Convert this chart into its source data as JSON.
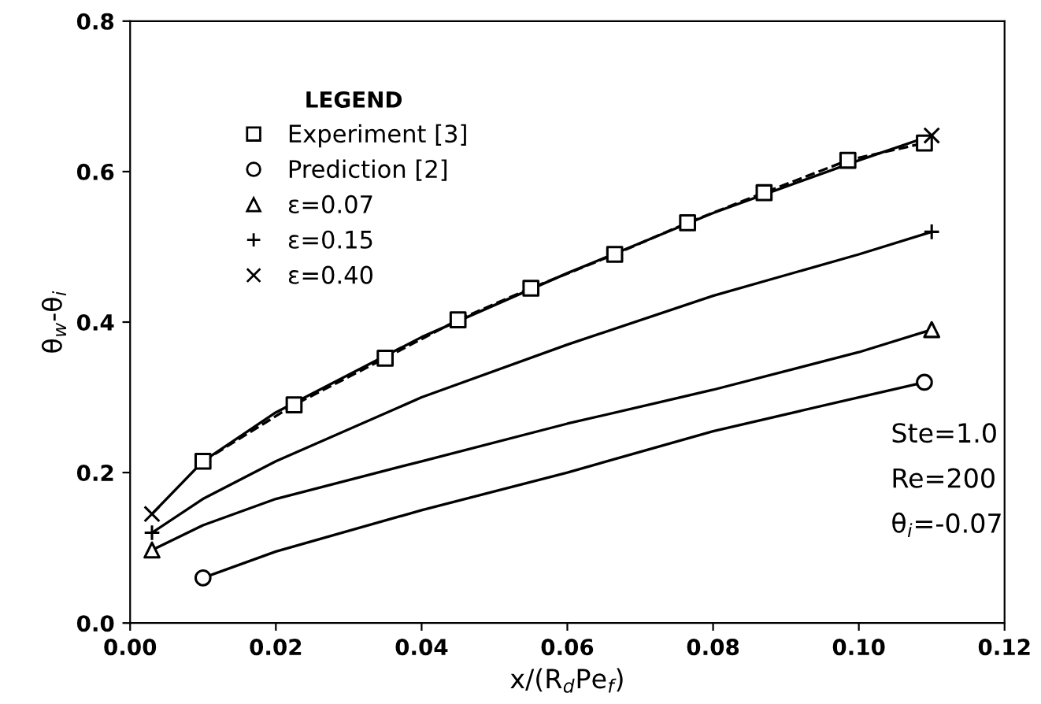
{
  "chart_data": {
    "type": "line",
    "xlabel": "x/(R$_{d}$Pe$_{f}$)",
    "ylabel": "θ$_{w}$-θ$_{i}$",
    "legend_title": "LEGEND",
    "legend": "top left",
    "grid": false,
    "xlim": [
      0,
      0.12
    ],
    "ylim": [
      0,
      0.8
    ],
    "xticks": [
      {
        "value": 0,
        "label": "0.00"
      },
      {
        "value": 0.02,
        "label": "0.02"
      },
      {
        "value": 0.04,
        "label": "0.04"
      },
      {
        "value": 0.06,
        "label": "0.06"
      },
      {
        "value": 0.08,
        "label": "0.08"
      },
      {
        "value": 0.1,
        "label": "0.10"
      },
      {
        "value": 0.12,
        "label": "0.12"
      }
    ],
    "yticks": [
      {
        "value": 0,
        "label": "0.0"
      },
      {
        "value": 0.2,
        "label": "0.2"
      },
      {
        "value": 0.4,
        "label": "0.4"
      },
      {
        "value": 0.6,
        "label": "0.6"
      },
      {
        "value": 0.8,
        "label": "0.8"
      }
    ],
    "annotations": [
      "Ste=1.0",
      "Re=200",
      "θ$_{i}$=-0.07"
    ],
    "series": [
      {
        "name": "Experiment [3]",
        "type": "scatter",
        "color": "#000000",
        "marker": "square",
        "x": [
          0.01,
          0.0225,
          0.035,
          0.045,
          0.055,
          0.0665,
          0.0765,
          0.087,
          0.0985,
          0.109
        ],
        "values": [
          0.215,
          0.29,
          0.352,
          0.403,
          0.445,
          0.49,
          0.532,
          0.572,
          0.615,
          0.638
        ]
      },
      {
        "color": "#000000",
        "line_style": "dashed",
        "x": [
          0.01,
          0.0225,
          0.035,
          0.045,
          0.055,
          0.0665,
          0.0765,
          0.087,
          0.0985,
          0.109
        ],
        "values": [
          0.215,
          0.29,
          0.352,
          0.403,
          0.445,
          0.49,
          0.532,
          0.572,
          0.615,
          0.638
        ]
      },
      {
        "name": "Prediction [2]",
        "type": "scatter",
        "color": "#000000",
        "marker": "circle",
        "x": [
          0.01,
          0.109
        ],
        "values": [
          0.06,
          0.32
        ]
      },
      {
        "color": "#000000",
        "line_style": "solid",
        "x": [
          0.01,
          0.02,
          0.04,
          0.06,
          0.08,
          0.1,
          0.109
        ],
        "values": [
          0.06,
          0.095,
          0.15,
          0.2,
          0.255,
          0.3,
          0.32
        ]
      },
      {
        "name": "ε=0.07",
        "type": "scatter",
        "color": "#000000",
        "marker": "triangle",
        "x": [
          0.003,
          0.11
        ],
        "values": [
          0.097,
          0.39
        ]
      },
      {
        "color": "#000000",
        "line_style": "solid",
        "x": [
          0.003,
          0.01,
          0.02,
          0.04,
          0.06,
          0.08,
          0.1,
          0.11
        ],
        "values": [
          0.097,
          0.13,
          0.165,
          0.215,
          0.265,
          0.31,
          0.36,
          0.39
        ]
      },
      {
        "name": "ε=0.15",
        "type": "scatter",
        "color": "#000000",
        "marker": "plus",
        "x": [
          0.003,
          0.11
        ],
        "values": [
          0.12,
          0.52
        ]
      },
      {
        "color": "#000000",
        "line_style": "solid",
        "x": [
          0.003,
          0.01,
          0.02,
          0.04,
          0.06,
          0.08,
          0.1,
          0.11
        ],
        "values": [
          0.12,
          0.165,
          0.215,
          0.3,
          0.37,
          0.435,
          0.49,
          0.52
        ]
      },
      {
        "name": "ε=0.40",
        "type": "scatter",
        "color": "#000000",
        "marker": "cross",
        "x": [
          0.003,
          0.11
        ],
        "values": [
          0.145,
          0.648
        ]
      },
      {
        "color": "#000000",
        "line_style": "solid",
        "x": [
          0.003,
          0.01,
          0.02,
          0.04,
          0.06,
          0.08,
          0.1,
          0.11
        ],
        "values": [
          0.145,
          0.215,
          0.28,
          0.38,
          0.465,
          0.545,
          0.615,
          0.648
        ]
      }
    ]
  }
}
